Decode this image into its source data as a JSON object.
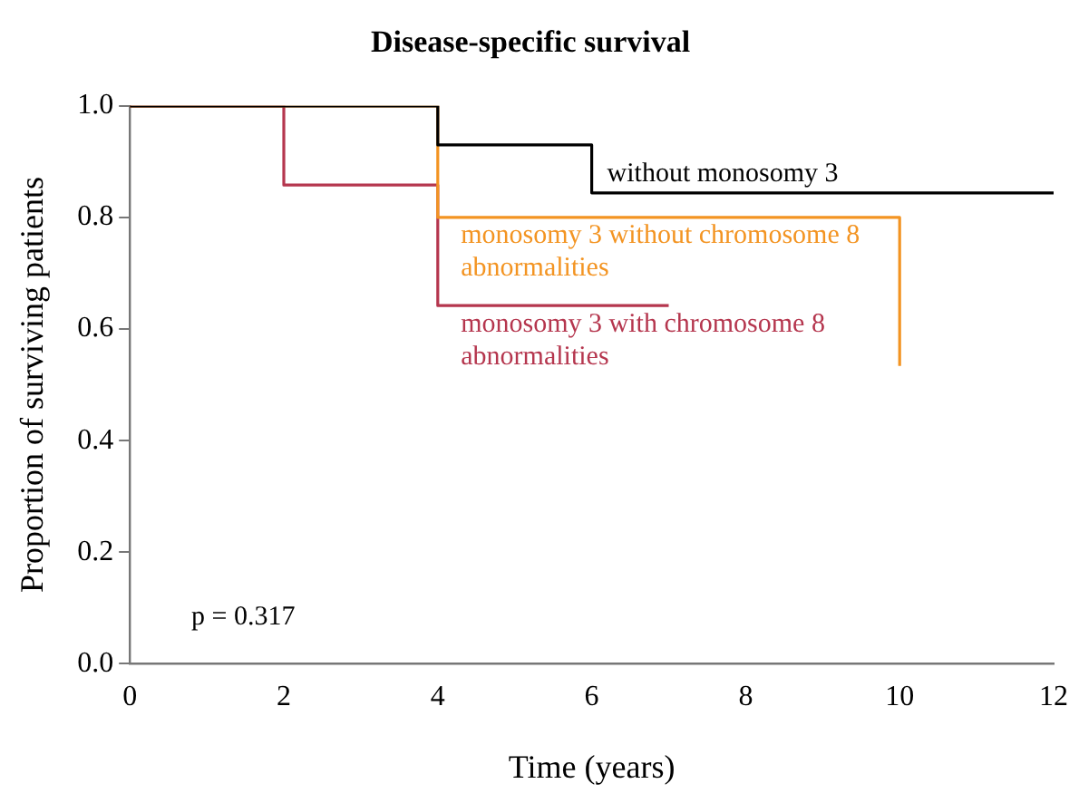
{
  "chart_data": {
    "type": "step",
    "title": "Disease-specific survival",
    "xlabel": "Time (years)",
    "ylabel": "Proportion of surviving patients",
    "xlim": [
      0,
      12
    ],
    "xticks": [
      0,
      2,
      4,
      6,
      8,
      10,
      12
    ],
    "ylim": [
      0,
      1
    ],
    "yticks": [
      {
        "value": 0,
        "label": "0.0"
      },
      {
        "value": 0.2,
        "label": "0.2"
      },
      {
        "value": 0.4,
        "label": "0.4"
      },
      {
        "value": 0.6,
        "label": "0.6"
      },
      {
        "value": 0.8,
        "label": "0.8"
      },
      {
        "value": 1,
        "label": "1.0"
      }
    ],
    "grid": false,
    "legend": false,
    "series": [
      {
        "name": "without monosomy 3",
        "color": "#000000",
        "x": [
          0,
          4,
          6,
          12
        ],
        "values": [
          1,
          0.93,
          0.844,
          0.844
        ]
      },
      {
        "name": "monosomy 3 without chromosome 8 abnormalities",
        "color": "#f39422",
        "x": [
          0,
          4,
          10
        ],
        "values": [
          1,
          0.8,
          0.534
        ]
      },
      {
        "name": "monosomy 3 with chromosome 8 abnormalities",
        "color": "#b5364e",
        "x": [
          0,
          2,
          4,
          7
        ],
        "values": [
          1,
          0.858,
          0.642,
          0.642
        ]
      }
    ],
    "annotations": [
      "p = 0.317"
    ]
  }
}
